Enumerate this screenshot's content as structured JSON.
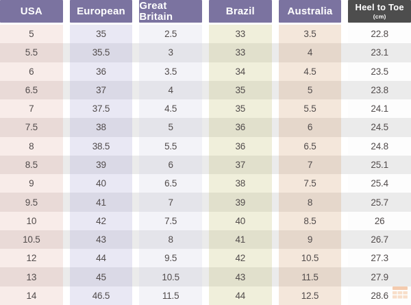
{
  "table": {
    "headers": [
      {
        "label": "USA"
      },
      {
        "label": "European"
      },
      {
        "label": "Great Britain"
      },
      {
        "label": "Brazil"
      },
      {
        "label": "Australia"
      },
      {
        "label": "Heel to Toe",
        "sublabel": "(cm)"
      }
    ],
    "rows": [
      [
        "5",
        "35",
        "2.5",
        "33",
        "3.5",
        "22.8"
      ],
      [
        "5.5",
        "35.5",
        "3",
        "33",
        "4",
        "23.1"
      ],
      [
        "6",
        "36",
        "3.5",
        "34",
        "4.5",
        "23.5"
      ],
      [
        "6.5",
        "37",
        "4",
        "35",
        "5",
        "23.8"
      ],
      [
        "7",
        "37.5",
        "4.5",
        "35",
        "5.5",
        "24.1"
      ],
      [
        "7.5",
        "38",
        "5",
        "36",
        "6",
        "24.5"
      ],
      [
        "8",
        "38.5",
        "5.5",
        "36",
        "6.5",
        "24.8"
      ],
      [
        "8.5",
        "39",
        "6",
        "37",
        "7",
        "25.1"
      ],
      [
        "9",
        "40",
        "6.5",
        "38",
        "7.5",
        "25.4"
      ],
      [
        "9.5",
        "41",
        "7",
        "39",
        "8",
        "25.7"
      ],
      [
        "10",
        "42",
        "7.5",
        "40",
        "8.5",
        "26"
      ],
      [
        "10.5",
        "43",
        "8",
        "41",
        "9",
        "26.7"
      ],
      [
        "12",
        "44",
        "9.5",
        "42",
        "10.5",
        "27.3"
      ],
      [
        "13",
        "45",
        "10.5",
        "43",
        "11.5",
        "27.9"
      ],
      [
        "14",
        "46.5",
        "11.5",
        "44",
        "12.5",
        "28.6"
      ]
    ]
  },
  "chart_data": {
    "type": "table",
    "columns": [
      "USA",
      "European",
      "Great Britain",
      "Brazil",
      "Australia",
      "Heel to Toe (cm)"
    ],
    "rows": [
      [
        "5",
        "35",
        "2.5",
        "33",
        "3.5",
        "22.8"
      ],
      [
        "5.5",
        "35.5",
        "3",
        "33",
        "4",
        "23.1"
      ],
      [
        "6",
        "36",
        "3.5",
        "34",
        "4.5",
        "23.5"
      ],
      [
        "6.5",
        "37",
        "4",
        "35",
        "5",
        "23.8"
      ],
      [
        "7",
        "37.5",
        "4.5",
        "35",
        "5.5",
        "24.1"
      ],
      [
        "7.5",
        "38",
        "5",
        "36",
        "6",
        "24.5"
      ],
      [
        "8",
        "38.5",
        "5.5",
        "36",
        "6.5",
        "24.8"
      ],
      [
        "8.5",
        "39",
        "6",
        "37",
        "7",
        "25.1"
      ],
      [
        "9",
        "40",
        "6.5",
        "38",
        "7.5",
        "25.4"
      ],
      [
        "9.5",
        "41",
        "7",
        "39",
        "8",
        "25.7"
      ],
      [
        "10",
        "42",
        "7.5",
        "40",
        "8.5",
        "26"
      ],
      [
        "10.5",
        "43",
        "8",
        "41",
        "9",
        "26.7"
      ],
      [
        "12",
        "44",
        "9.5",
        "42",
        "10.5",
        "27.3"
      ],
      [
        "13",
        "45",
        "10.5",
        "43",
        "11.5",
        "27.9"
      ],
      [
        "14",
        "46.5",
        "11.5",
        "44",
        "12.5",
        "28.6"
      ]
    ]
  },
  "colors": {
    "header_bg": "#7b73a0",
    "header_dark_bg": "#4d4d4d",
    "header_text": "#ffffff",
    "cell_text": "#514b4b",
    "even_row_overlay": "#ebebeb",
    "watermark_orange": "#e8833a",
    "columns": [
      {
        "odd": "#f8ece9",
        "even": "#e9dad7"
      },
      {
        "odd": "#e9e8f4",
        "even": "#dad9e6"
      },
      {
        "odd": "#f3f3f8",
        "even": "#e4e4ea"
      },
      {
        "odd": "#f0efdb",
        "even": "#e1e0cc"
      },
      {
        "odd": "#f4e7db",
        "even": "#e5d7cb"
      },
      {
        "odd": "#fdfdfd",
        "even": "#ebebeb"
      }
    ]
  }
}
